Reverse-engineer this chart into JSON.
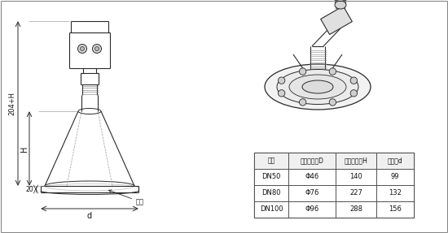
{
  "table_headers": [
    "法兰",
    "喇叭口直径D",
    "喇叭口高度H",
    "四氟盘d"
  ],
  "table_rows": [
    [
      "DN50",
      "Φ46",
      "140",
      "99"
    ],
    [
      "DN80",
      "Φ76",
      "227",
      "132"
    ],
    [
      "DN100",
      "Φ96",
      "288",
      "156"
    ]
  ],
  "dim_label_204H": "204+H",
  "dim_label_H": "H",
  "dim_label_20": "20",
  "dim_label_d": "d",
  "dim_label_flange": "法兰",
  "bg_color": "#ffffff",
  "line_color": "#2a2a2a",
  "table_line_color": "#444444",
  "text_color": "#111111"
}
